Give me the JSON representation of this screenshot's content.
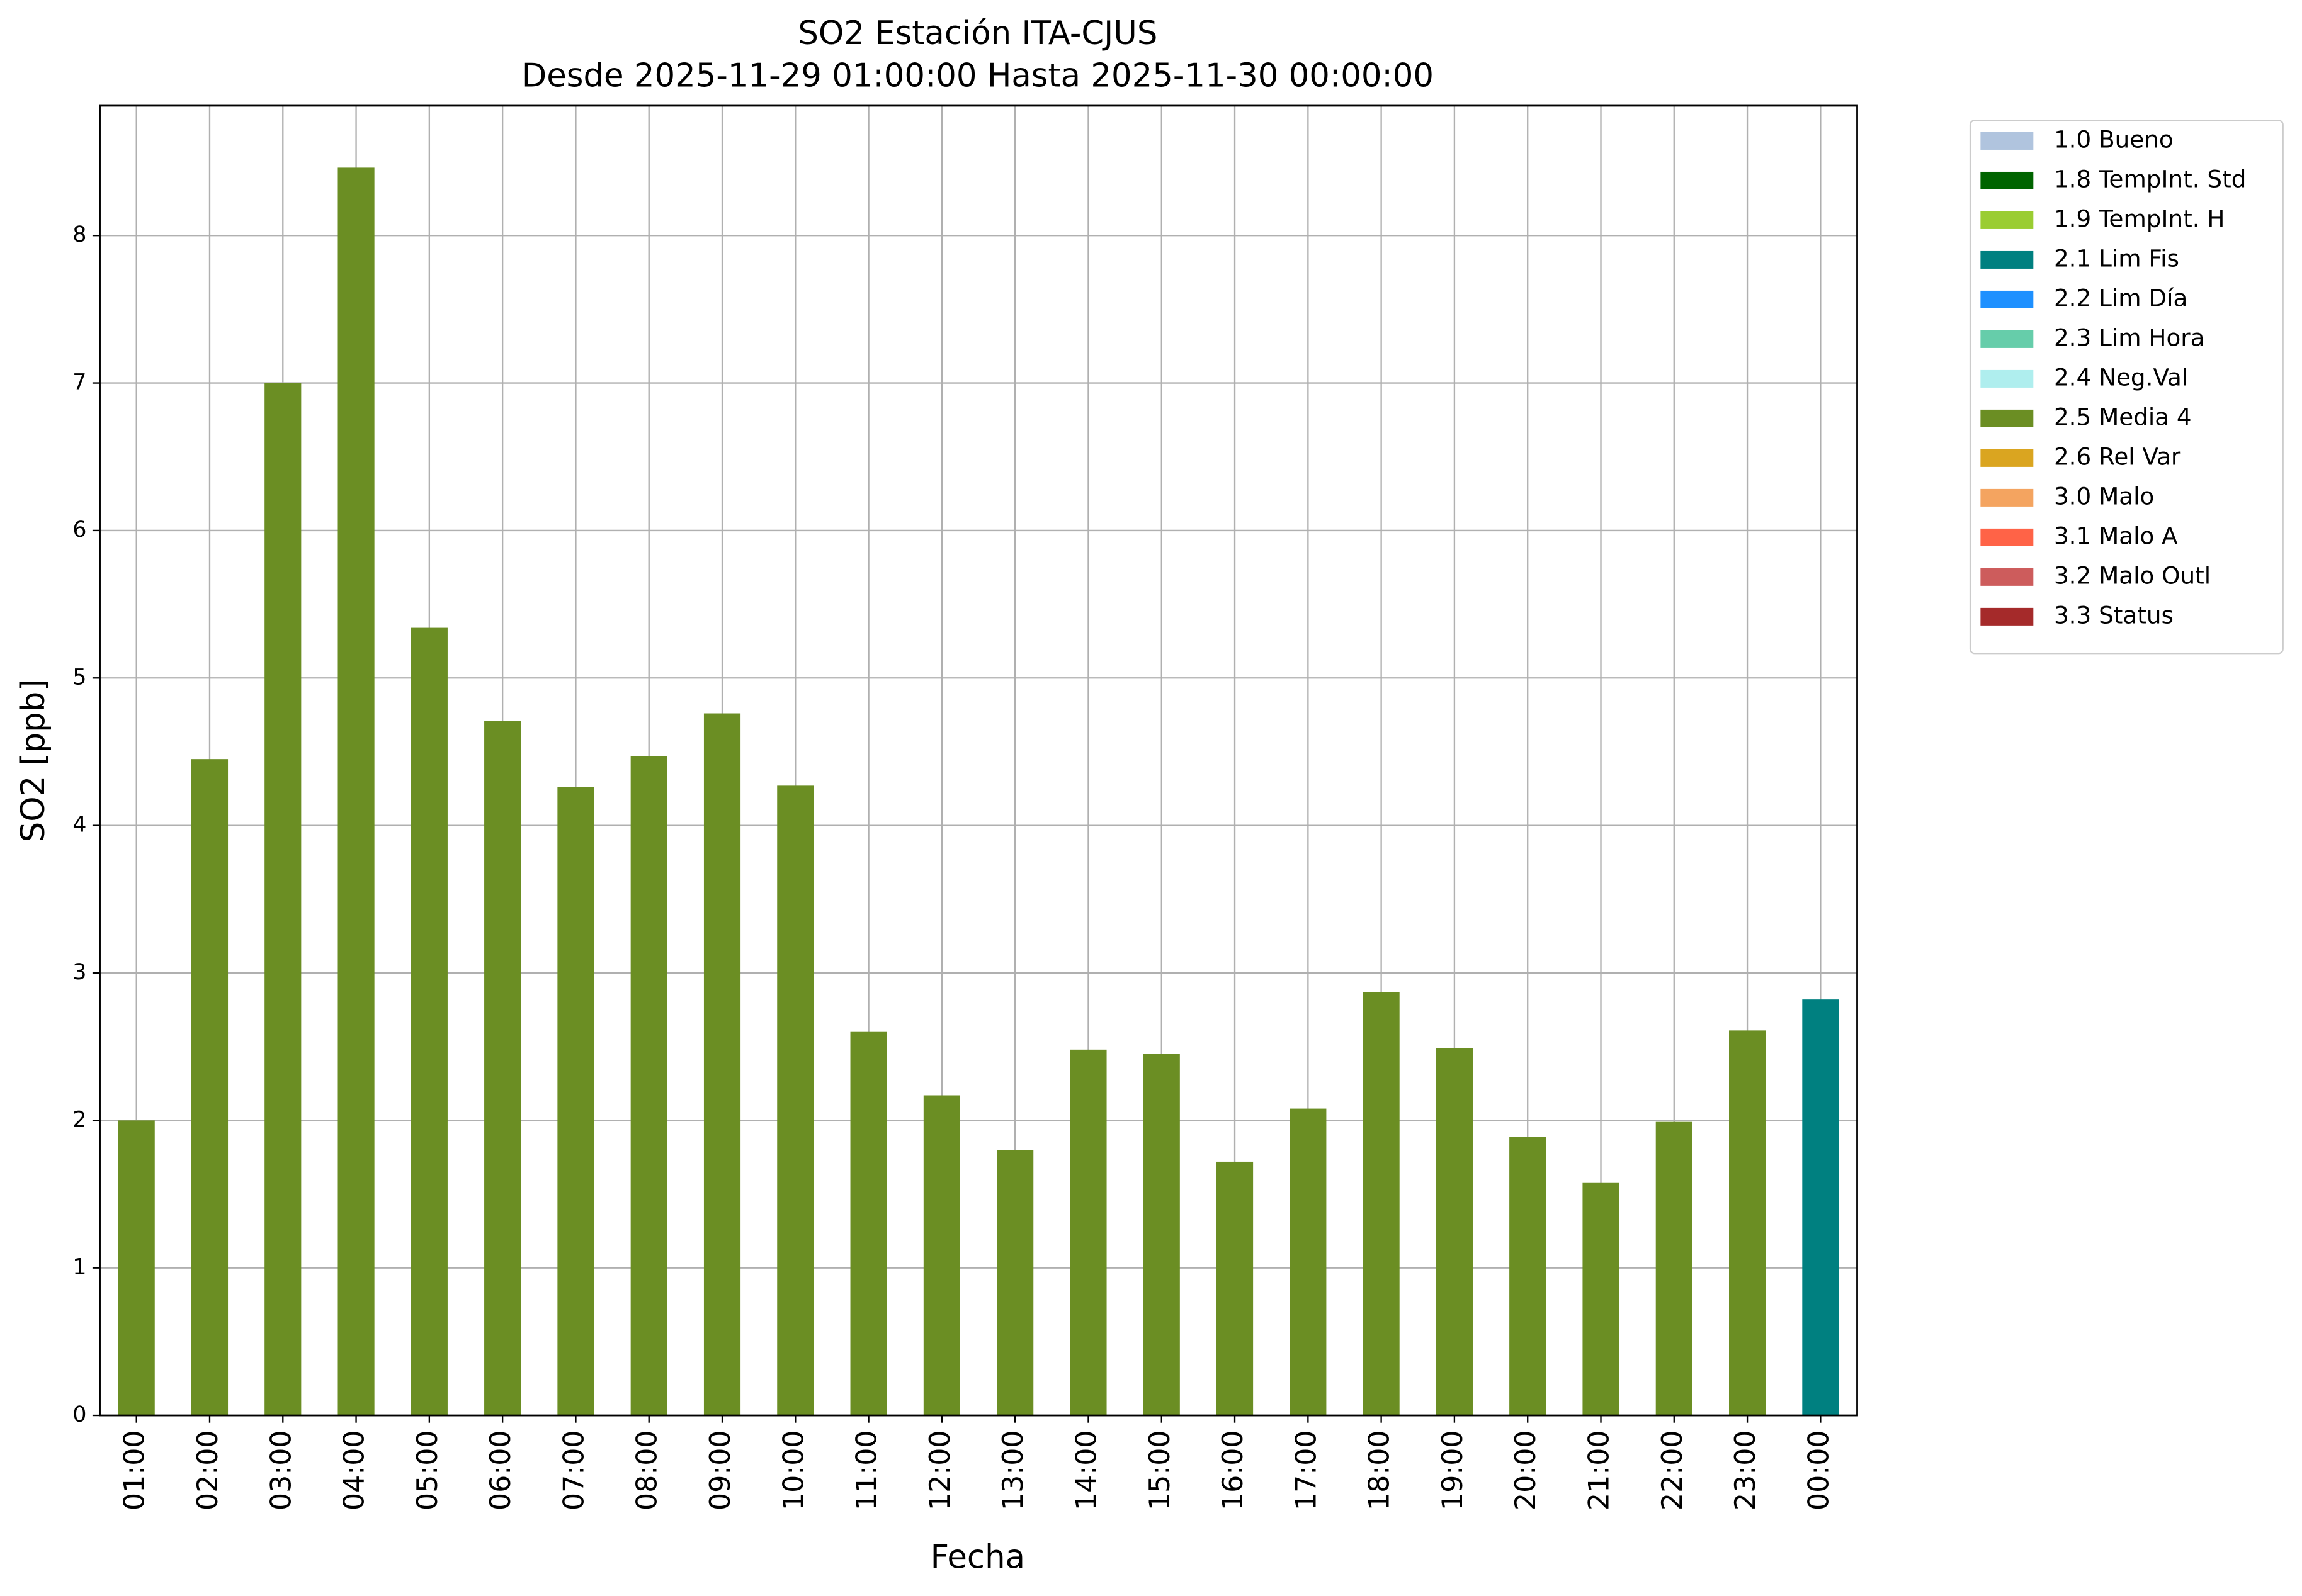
{
  "chart_data": {
    "type": "bar",
    "stacked": true,
    "title": "SO2 Estación ITA-CJUS",
    "subtitle": "Desde 2025-11-29 01:00:00 Hasta 2025-11-30 00:00:00",
    "x_label": "Fecha",
    "y_label": "SO2 [ppb]",
    "categories": [
      "01:00",
      "02:00",
      "03:00",
      "04:00",
      "05:00",
      "06:00",
      "07:00",
      "08:00",
      "09:00",
      "10:00",
      "11:00",
      "12:00",
      "13:00",
      "14:00",
      "15:00",
      "16:00",
      "17:00",
      "18:00",
      "19:00",
      "20:00",
      "21:00",
      "22:00",
      "23:00",
      "00:00"
    ],
    "series": [
      {
        "name": "1.0 Bueno",
        "color": "#b0c4de",
        "values": [
          null,
          null,
          null,
          null,
          null,
          null,
          null,
          null,
          null,
          null,
          null,
          null,
          null,
          null,
          null,
          null,
          null,
          null,
          null,
          null,
          null,
          null,
          null,
          null
        ]
      },
      {
        "name": "1.8 TempInt. Std",
        "color": "#006400",
        "values": [
          null,
          null,
          null,
          null,
          null,
          null,
          null,
          null,
          null,
          null,
          null,
          null,
          null,
          null,
          null,
          null,
          null,
          null,
          null,
          null,
          null,
          null,
          null,
          null
        ]
      },
      {
        "name": "1.9 TempInt. H",
        "color": "#9acd32",
        "values": [
          null,
          null,
          null,
          null,
          null,
          null,
          null,
          null,
          null,
          null,
          null,
          null,
          null,
          null,
          null,
          null,
          null,
          null,
          null,
          null,
          null,
          null,
          null,
          null
        ]
      },
      {
        "name": "2.1 Lim Fis",
        "color": "#008080",
        "values": [
          null,
          null,
          null,
          null,
          null,
          null,
          null,
          null,
          null,
          null,
          null,
          null,
          null,
          null,
          null,
          null,
          null,
          null,
          null,
          null,
          null,
          null,
          null,
          2.82
        ]
      },
      {
        "name": "2.2 Lim Día",
        "color": "#1e90ff",
        "values": [
          null,
          null,
          null,
          null,
          null,
          null,
          null,
          null,
          null,
          null,
          null,
          null,
          null,
          null,
          null,
          null,
          null,
          null,
          null,
          null,
          null,
          null,
          null,
          null
        ]
      },
      {
        "name": "2.3 Lim Hora",
        "color": "#66cdaa",
        "values": [
          null,
          null,
          null,
          null,
          null,
          null,
          null,
          null,
          null,
          null,
          null,
          null,
          null,
          null,
          null,
          null,
          null,
          null,
          null,
          null,
          null,
          null,
          null,
          null
        ]
      },
      {
        "name": "2.4 Neg.Val",
        "color": "#afeeee",
        "values": [
          null,
          null,
          null,
          null,
          null,
          null,
          null,
          null,
          null,
          null,
          null,
          null,
          null,
          null,
          null,
          null,
          null,
          null,
          null,
          null,
          null,
          null,
          null,
          null
        ]
      },
      {
        "name": "2.5 Media 4",
        "color": "#6b8e23",
        "values": [
          2.0,
          4.45,
          7.0,
          8.46,
          5.34,
          4.71,
          4.26,
          4.47,
          4.76,
          4.27,
          2.6,
          2.17,
          1.8,
          2.48,
          2.45,
          1.72,
          2.08,
          2.87,
          2.49,
          1.89,
          1.58,
          1.99,
          2.61,
          null
        ]
      },
      {
        "name": "2.6 Rel Var",
        "color": "#daa520",
        "values": [
          null,
          null,
          null,
          null,
          null,
          null,
          null,
          null,
          null,
          null,
          null,
          null,
          null,
          null,
          null,
          null,
          null,
          null,
          null,
          null,
          null,
          null,
          null,
          null
        ]
      },
      {
        "name": "3.0 Malo",
        "color": "#f4a460",
        "values": [
          null,
          null,
          null,
          null,
          null,
          null,
          null,
          null,
          null,
          null,
          null,
          null,
          null,
          null,
          null,
          null,
          null,
          null,
          null,
          null,
          null,
          null,
          null,
          null
        ]
      },
      {
        "name": "3.1 Malo A",
        "color": "#ff6347",
        "values": [
          null,
          null,
          null,
          null,
          null,
          null,
          null,
          null,
          null,
          null,
          null,
          null,
          null,
          null,
          null,
          null,
          null,
          null,
          null,
          null,
          null,
          null,
          null,
          null
        ]
      },
      {
        "name": "3.2 Malo Outl",
        "color": "#cd5c5c",
        "values": [
          null,
          null,
          null,
          null,
          null,
          null,
          null,
          null,
          null,
          null,
          null,
          null,
          null,
          null,
          null,
          null,
          null,
          null,
          null,
          null,
          null,
          null,
          null,
          null
        ]
      },
      {
        "name": "3.3 Status",
        "color": "#a52a2a",
        "values": [
          null,
          null,
          null,
          null,
          null,
          null,
          null,
          null,
          null,
          null,
          null,
          null,
          null,
          null,
          null,
          null,
          null,
          null,
          null,
          null,
          null,
          null,
          null,
          null
        ]
      }
    ],
    "ylim": [
      0,
      8.88
    ],
    "yticks": [
      0,
      1,
      2,
      3,
      4,
      5,
      6,
      7,
      8
    ],
    "grid": true,
    "legend": "outside-right"
  }
}
